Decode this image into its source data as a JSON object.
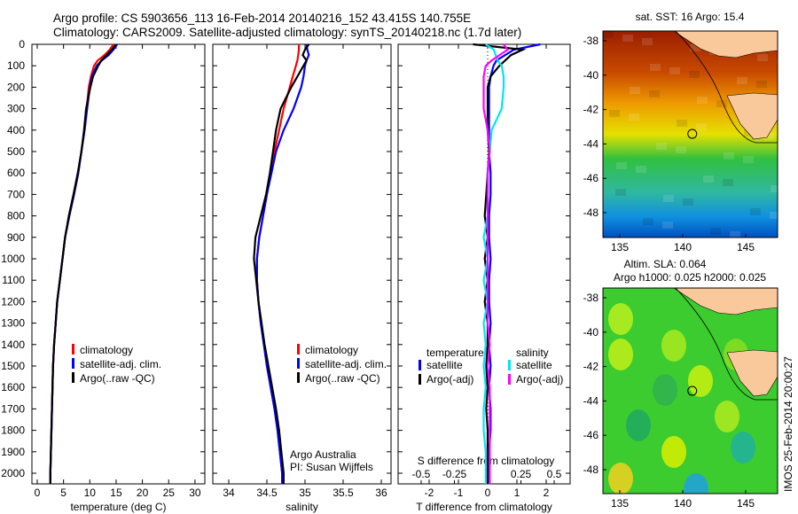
{
  "header": {
    "line1": "Argo profile: CS 5903656_113 16-Feb-2014 20140216_152 43.415S 140.755E",
    "line2": "Climatology: CARS2009. Satellite-adjusted climatology: synTS_20140218.nc (1.7d later)"
  },
  "colors": {
    "climatology": "#ff0000",
    "satellite": "#0000ff",
    "argo": "#000000",
    "sal_satellite": "#00e5ee",
    "sal_argo": "#ff00ff",
    "land": "#f9c99b"
  },
  "chart_data": [
    {
      "type": "line",
      "id": "temperature",
      "xlabel": "temperature (deg C)",
      "ylabel": "",
      "xlim": [
        -1,
        31
      ],
      "ylim": [
        2050,
        0
      ],
      "xticks": [
        "0",
        "5",
        "10",
        "15",
        "20",
        "25",
        "30"
      ],
      "yticks": [
        "0",
        "100",
        "200",
        "300",
        "400",
        "500",
        "600",
        "700",
        "800",
        "900",
        "1000",
        "1100",
        "1200",
        "1300",
        "1400",
        "1500",
        "1600",
        "1700",
        "1800",
        "1900",
        "2000"
      ],
      "depth": [
        0,
        25,
        50,
        75,
        100,
        150,
        200,
        300,
        400,
        500,
        600,
        700,
        800,
        900,
        1000,
        1100,
        1200,
        1300,
        1400,
        1500,
        1600,
        1700,
        1800,
        1900,
        2000,
        2050
      ],
      "series": [
        {
          "name": "climatology",
          "color": "#ff0000",
          "values": [
            14.5,
            13.8,
            12.8,
            11.5,
            10.8,
            10.2,
            9.8,
            9.4,
            9.0,
            8.4,
            7.8,
            7.0,
            6.1,
            5.3,
            4.8,
            4.3,
            3.8,
            3.5,
            3.2,
            3.0,
            2.9,
            2.8,
            2.7,
            2.6,
            2.5,
            2.5
          ]
        },
        {
          "name": "satellite-adj. clim.",
          "color": "#0000ff",
          "values": [
            15.2,
            14.5,
            13.6,
            12.3,
            11.3,
            10.4,
            10.0,
            9.5,
            9.0,
            8.4,
            7.8,
            7.0,
            6.1,
            5.3,
            4.8,
            4.3,
            3.8,
            3.5,
            3.2,
            3.0,
            2.9,
            2.8,
            2.7,
            2.6,
            2.5,
            2.5
          ]
        },
        {
          "name": "Argo(..raw -QC)",
          "color": "#000000",
          "values": [
            15.0,
            14.2,
            13.2,
            12.2,
            11.6,
            10.6,
            10.1,
            9.3,
            8.9,
            8.4,
            7.7,
            6.9,
            6.0,
            5.3,
            4.8,
            4.3,
            3.8,
            3.5,
            3.2,
            3.0,
            2.9,
            2.8,
            2.7,
            2.6,
            2.5,
            2.5
          ]
        }
      ],
      "legend": [
        "climatology",
        "satellite-adj. clim.",
        "Argo(..raw -QC)"
      ]
    },
    {
      "type": "line",
      "id": "salinity",
      "xlabel": "salinity",
      "xlim": [
        33.8,
        36.15
      ],
      "ylim": [
        2050,
        0
      ],
      "xticks": [
        "34",
        "34.5",
        "35",
        "35.5",
        "36"
      ],
      "depth": [
        0,
        25,
        50,
        75,
        100,
        150,
        200,
        300,
        400,
        500,
        600,
        700,
        800,
        900,
        1000,
        1100,
        1200,
        1300,
        1400,
        1500,
        1600,
        1700,
        1800,
        1900,
        2000,
        2050
      ],
      "series": [
        {
          "name": "climatology",
          "color": "#ff0000",
          "values": [
            34.92,
            34.92,
            34.91,
            34.9,
            34.88,
            34.84,
            34.8,
            34.72,
            34.66,
            34.6,
            34.55,
            34.5,
            34.45,
            34.4,
            34.37,
            34.37,
            34.39,
            34.42,
            34.46,
            34.5,
            34.55,
            34.6,
            34.64,
            34.67,
            34.7,
            34.7
          ]
        },
        {
          "name": "satellite-adj. clim.",
          "color": "#0000ff",
          "values": [
            35.02,
            35.03,
            35.05,
            35.02,
            35.0,
            34.98,
            34.95,
            34.85,
            34.72,
            34.62,
            34.56,
            34.5,
            34.45,
            34.4,
            34.37,
            34.37,
            34.39,
            34.42,
            34.46,
            34.5,
            34.55,
            34.6,
            34.64,
            34.67,
            34.7,
            34.7
          ]
        },
        {
          "name": "Argo(..raw -QC)",
          "color": "#000000",
          "values": [
            35.05,
            35.0,
            34.97,
            35.02,
            34.98,
            34.9,
            34.82,
            34.68,
            34.62,
            34.58,
            34.54,
            34.49,
            34.42,
            34.35,
            34.33,
            34.36,
            34.39,
            34.43,
            34.47,
            34.52,
            34.57,
            34.62,
            34.66,
            34.69,
            34.72,
            34.72
          ]
        }
      ],
      "legend": [
        "climatology",
        "satellite-adj. clim.",
        "Argo(..raw -QC)"
      ],
      "annotation": [
        "Argo Australia",
        "PI: Susan Wijffels"
      ]
    },
    {
      "type": "line",
      "id": "difference",
      "xlabel": "T difference from climatology",
      "x2label": "S difference from climatology",
      "xlim": [
        -3,
        3
      ],
      "ylim": [
        2050,
        0
      ],
      "xticks": [
        "-2",
        "-1",
        "0",
        "1",
        "2"
      ],
      "x2ticks": [
        "-0.5",
        "-0.25",
        "0",
        "0.25",
        "0.5"
      ],
      "depth": [
        0,
        25,
        50,
        75,
        100,
        150,
        200,
        300,
        400,
        500,
        600,
        700,
        800,
        900,
        1000,
        1100,
        1200,
        1300,
        1400,
        1500,
        1600,
        1700,
        1800,
        1900,
        2000,
        2050
      ],
      "series": [
        {
          "name": "temperature satellite",
          "color": "#0000ff",
          "values": [
            1.8,
            0.9,
            0.6,
            0.3,
            0.2,
            0.1,
            0.05,
            0.05,
            0.05,
            0.05,
            0.1,
            0.1,
            0.05,
            0.05,
            0.1,
            0.05,
            0.05,
            0.1,
            0.05,
            0.1,
            0.05,
            0.1,
            0.1,
            0.05,
            0.05,
            0.05
          ]
        },
        {
          "name": "temperature Argo(-adj)",
          "color": "#000000",
          "values": [
            -0.5,
            1.2,
            0.8,
            0.6,
            0.4,
            0.1,
            0.0,
            0.0,
            0.0,
            0.05,
            0.0,
            -0.05,
            -0.1,
            0.0,
            -0.1,
            0.0,
            -0.1,
            0.0,
            0.0,
            -0.05,
            0.0,
            -0.05,
            0.0,
            0.0,
            0.0,
            0.0
          ]
        },
        {
          "name": "salinity satellite",
          "color": "#00e5ee",
          "values": [
            -0.05,
            0.15,
            0.2,
            0.25,
            0.35,
            0.4,
            0.4,
            0.35,
            0.1,
            0.05,
            0.0,
            0.0,
            0.0,
            -0.1,
            0.0,
            -0.1,
            0.0,
            -0.1,
            -0.05,
            -0.1,
            -0.05,
            -0.1,
            -0.1,
            -0.05,
            -0.05,
            -0.05
          ]
        },
        {
          "name": "salinity Argo(-adj)",
          "color": "#ff00ff",
          "values": [
            0.4,
            0.5,
            0.3,
            0.1,
            -0.05,
            -0.1,
            -0.1,
            -0.1,
            0.0,
            0.05,
            0.0,
            0.0,
            0.0,
            0.0,
            0.0,
            0.0,
            0.0,
            0.0,
            0.05,
            0.0,
            0.05,
            0.05,
            0.05,
            0.05,
            0.05,
            0.05
          ]
        }
      ],
      "legend": {
        "temp_title": "temperature",
        "sal_title": "salinity",
        "temp_items": [
          "satellite",
          "Argo(-adj)"
        ],
        "sal_items": [
          "satellite",
          "Argo(-adj)"
        ]
      }
    },
    {
      "type": "heatmap",
      "id": "sst_map",
      "title": "sat. SST: 16 Argo: 15.4",
      "xticks": [
        "135",
        "140",
        "145"
      ],
      "yticks": [
        "-38",
        "-40",
        "-42",
        "-44",
        "-46",
        "-48"
      ],
      "xlim": [
        133.7,
        147.6
      ],
      "ylim": [
        -49.4,
        -37.4
      ],
      "marker": {
        "lon": 140.755,
        "lat": -43.415
      }
    },
    {
      "type": "heatmap",
      "id": "sla_map",
      "title": "Altim. SLA: 0.064",
      "subtitle": "Argo h1000: 0.025 h2000: 0.025",
      "xticks": [
        "135",
        "140",
        "145"
      ],
      "yticks": [
        "-38",
        "-40",
        "-42",
        "-44",
        "-46",
        "-48"
      ],
      "xlim": [
        133.7,
        147.6
      ],
      "ylim": [
        -49.4,
        -37.4
      ],
      "marker": {
        "lon": 140.755,
        "lat": -43.415
      },
      "side_label": "IMOS 25-Feb-2014 20:00:27"
    }
  ]
}
